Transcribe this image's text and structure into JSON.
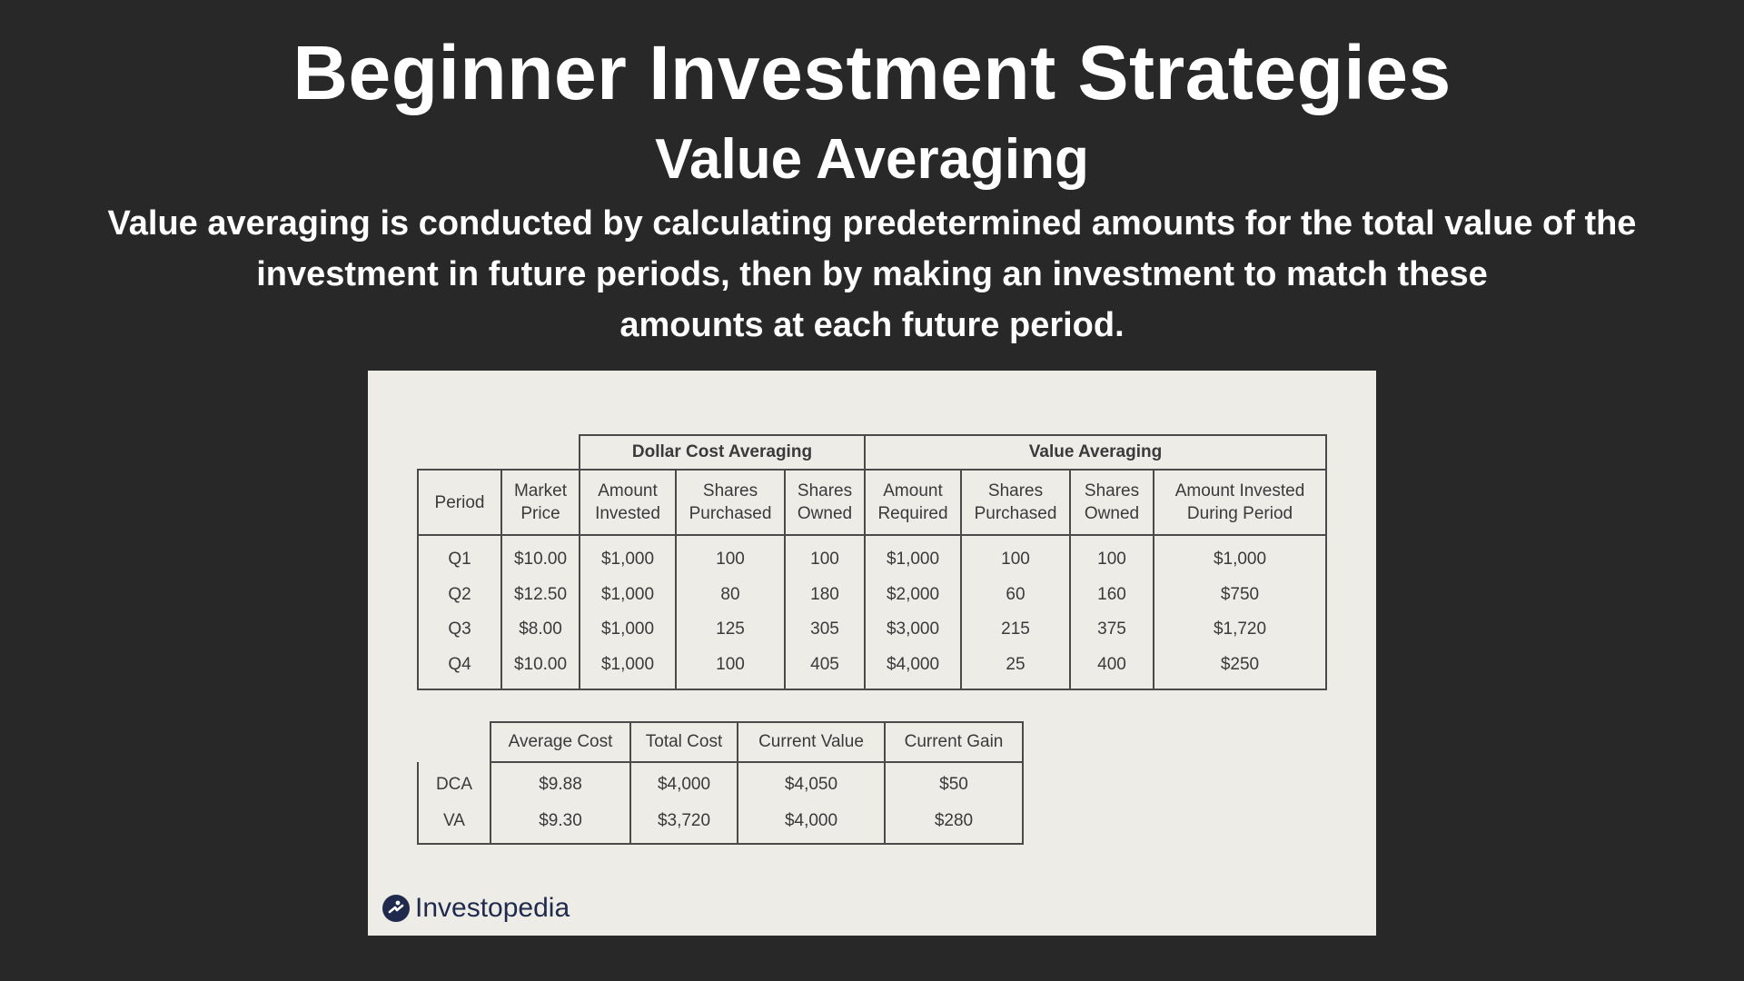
{
  "header": {
    "title": "Beginner Investment Strategies",
    "subtitle": "Value Averaging",
    "description_lines": [
      "Value averaging is conducted by calculating predetermined amounts for the total value of the",
      "investment in future periods, then by making an investment to match these",
      "amounts at each future period."
    ]
  },
  "table1": {
    "group_dca": "Dollar Cost Averaging",
    "group_va": "Value Averaging",
    "headers": [
      [
        "Period",
        ""
      ],
      [
        "Market",
        "Price"
      ],
      [
        "Amount",
        "Invested"
      ],
      [
        "Shares",
        "Purchased"
      ],
      [
        "Shares",
        "Owned"
      ],
      [
        "Amount",
        "Required"
      ],
      [
        "Shares",
        "Purchased"
      ],
      [
        "Shares",
        "Owned"
      ],
      [
        "Amount Invested",
        "During Period"
      ]
    ],
    "rows": [
      [
        "Q1",
        "$10.00",
        "$1,000",
        "100",
        "100",
        "$1,000",
        "100",
        "100",
        "$1,000"
      ],
      [
        "Q2",
        "$12.50",
        "$1,000",
        "80",
        "180",
        "$2,000",
        "60",
        "160",
        "$750"
      ],
      [
        "Q3",
        "$8.00",
        "$1,000",
        "125",
        "305",
        "$3,000",
        "215",
        "375",
        "$1,720"
      ],
      [
        "Q4",
        "$10.00",
        "$1,000",
        "100",
        "405",
        "$4,000",
        "25",
        "400",
        "$250"
      ]
    ]
  },
  "table2": {
    "headers": [
      "Average Cost",
      "Total Cost",
      "Current Value",
      "Current Gain"
    ],
    "rows": [
      [
        "DCA",
        "$9.88",
        "$4,000",
        "$4,050",
        "$50"
      ],
      [
        "VA",
        "$9.30",
        "$3,720",
        "$4,000",
        "$280"
      ]
    ]
  },
  "logo": {
    "text": "Investopedia"
  }
}
